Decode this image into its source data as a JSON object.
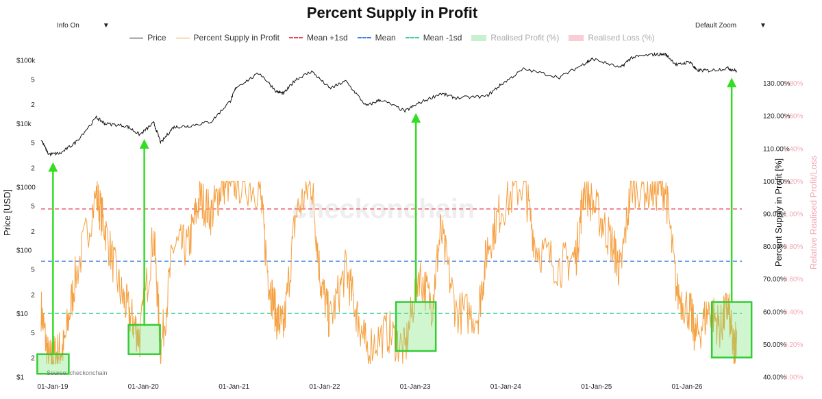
{
  "header": {
    "title": "Percent Supply in Profit",
    "info_on": "Info On",
    "default_zoom": "Default Zoom",
    "caret": "▼"
  },
  "legend": [
    {
      "label": "Price",
      "color": "#111111",
      "style": "line"
    },
    {
      "label": "Percent Supply in Profit",
      "color": "#f5a041",
      "style": "line"
    },
    {
      "label": "Mean +1sd",
      "color": "#e8485c",
      "style": "dash"
    },
    {
      "label": "Mean",
      "color": "#3f7fe0",
      "style": "dash"
    },
    {
      "label": "Mean -1sd",
      "color": "#3dcf9a",
      "style": "dash"
    },
    {
      "label": "Realised Profit (%)",
      "color": "#c8f0cf",
      "style": "box"
    },
    {
      "label": "Realised Loss (%)",
      "color": "#f8cdd5",
      "style": "box"
    }
  ],
  "watermark": "checkonchain",
  "source": "Source: checkonchain",
  "chart_data": {
    "type": "line",
    "x_ticks": [
      "01-Jan-19",
      "01-Jan-20",
      "01-Jan-21",
      "01-Jan-22",
      "01-Jan-23",
      "01-Jan-24",
      "01-Jan-25",
      "01-Jan-26"
    ],
    "x_range": [
      "2018-11-15",
      "2026-08-10"
    ],
    "y_left": {
      "label": "Price [USD]",
      "scale": "log",
      "range": [
        1,
        100000
      ],
      "ticks": [
        {
          "v": 1,
          "t": "$1"
        },
        {
          "v": 2,
          "t": "2"
        },
        {
          "v": 5,
          "t": "5"
        },
        {
          "v": 10,
          "t": "$10"
        },
        {
          "v": 20,
          "t": "2"
        },
        {
          "v": 50,
          "t": "5"
        },
        {
          "v": 100,
          "t": "$100"
        },
        {
          "v": 200,
          "t": "2"
        },
        {
          "v": 500,
          "t": "5"
        },
        {
          "v": 1000,
          "t": "$1000"
        },
        {
          "v": 2000,
          "t": "2"
        },
        {
          "v": 5000,
          "t": "5"
        },
        {
          "v": 10000,
          "t": "$10k"
        },
        {
          "v": 20000,
          "t": "2"
        },
        {
          "v": 50000,
          "t": "5"
        },
        {
          "v": 100000,
          "t": "$100k"
        }
      ]
    },
    "y_right": {
      "label": "Percent Supply in Profit [%]",
      "range": [
        40,
        140
      ],
      "ticks": [
        "40.00%",
        "50.00%",
        "60.00%",
        "70.00%",
        "80.00%",
        "90.00%",
        "100.00%",
        "110.00%",
        "120.00%",
        "130.00%"
      ]
    },
    "y_right2": {
      "label": "Relative Realised Profit/Loss",
      "range": [
        0,
        2
      ],
      "ticks": [
        "0.00%",
        "0.20%",
        "0.40%",
        "0.60%",
        "0.80%",
        "1.00%",
        "1.20%",
        "1.40%",
        "1.60%",
        "1.80%"
      ]
    },
    "reference_lines": {
      "mean_plus_1sd": 91.5,
      "mean": 75.5,
      "mean_minus_1sd": 59.5
    },
    "series": [
      {
        "name": "Price",
        "points": [
          [
            "2018-11-15",
            5600
          ],
          [
            "2018-12-15",
            3300
          ],
          [
            "2019-02-01",
            3400
          ],
          [
            "2019-04-01",
            5000
          ],
          [
            "2019-06-26",
            12500
          ],
          [
            "2019-08-01",
            10000
          ],
          [
            "2019-10-26",
            9200
          ],
          [
            "2019-12-18",
            6700
          ],
          [
            "2020-02-12",
            10300
          ],
          [
            "2020-03-12",
            5000
          ],
          [
            "2020-05-01",
            8800
          ],
          [
            "2020-07-01",
            9200
          ],
          [
            "2020-10-01",
            10800
          ],
          [
            "2020-12-17",
            23000
          ],
          [
            "2021-01-10",
            38000
          ],
          [
            "2021-04-14",
            63000
          ],
          [
            "2021-06-22",
            32000
          ],
          [
            "2021-07-20",
            30000
          ],
          [
            "2021-09-07",
            50000
          ],
          [
            "2021-11-10",
            67000
          ],
          [
            "2022-01-22",
            36000
          ],
          [
            "2022-03-28",
            47000
          ],
          [
            "2022-06-18",
            19000
          ],
          [
            "2022-08-15",
            24000
          ],
          [
            "2022-11-21",
            15800
          ],
          [
            "2023-01-15",
            21000
          ],
          [
            "2023-04-14",
            30000
          ],
          [
            "2023-06-15",
            25500
          ],
          [
            "2023-10-15",
            27000
          ],
          [
            "2023-12-15",
            42000
          ],
          [
            "2024-03-14",
            73000
          ],
          [
            "2024-08-05",
            54000
          ],
          [
            "2024-11-12",
            88000
          ],
          [
            "2024-12-17",
            106000
          ],
          [
            "2025-04-07",
            76000
          ],
          [
            "2025-05-22",
            111000
          ],
          [
            "2025-08-14",
            123000
          ],
          [
            "2025-10-06",
            125000
          ],
          [
            "2025-11-21",
            84000
          ],
          [
            "2026-01-14",
            96000
          ],
          [
            "2026-02-06",
            70000
          ],
          [
            "2026-04-01",
            69000
          ],
          [
            "2026-06-15",
            75000
          ],
          [
            "2026-07-20",
            68000
          ]
        ]
      },
      {
        "name": "Percent Supply in Profit",
        "points": [
          [
            "2018-11-15",
            61
          ],
          [
            "2018-12-15",
            45
          ],
          [
            "2019-01-15",
            47
          ],
          [
            "2019-02-15",
            49
          ],
          [
            "2019-04-01",
            70
          ],
          [
            "2019-06-26",
            96
          ],
          [
            "2019-08-01",
            85
          ],
          [
            "2019-10-01",
            66
          ],
          [
            "2019-11-15",
            58
          ],
          [
            "2019-12-18",
            52
          ],
          [
            "2020-02-12",
            84
          ],
          [
            "2020-03-12",
            48
          ],
          [
            "2020-05-01",
            80
          ],
          [
            "2020-07-01",
            80
          ],
          [
            "2020-08-15",
            95
          ],
          [
            "2020-10-01",
            90
          ],
          [
            "2020-11-15",
            99
          ],
          [
            "2021-01-10",
            99.8
          ],
          [
            "2021-04-14",
            98
          ],
          [
            "2021-05-20",
            70
          ],
          [
            "2021-06-22",
            58
          ],
          [
            "2021-07-20",
            55
          ],
          [
            "2021-09-07",
            90
          ],
          [
            "2021-11-10",
            99.5
          ],
          [
            "2021-12-15",
            70
          ],
          [
            "2022-01-22",
            57
          ],
          [
            "2022-03-28",
            73
          ],
          [
            "2022-05-12",
            59
          ],
          [
            "2022-06-18",
            49
          ],
          [
            "2022-09-15",
            54
          ],
          [
            "2022-11-21",
            48
          ],
          [
            "2023-01-15",
            72
          ],
          [
            "2023-03-10",
            62
          ],
          [
            "2023-04-14",
            85
          ],
          [
            "2023-06-15",
            60
          ],
          [
            "2023-09-11",
            59
          ],
          [
            "2023-10-20",
            80
          ],
          [
            "2023-12-15",
            92
          ],
          [
            "2024-03-14",
            99.7
          ],
          [
            "2024-05-01",
            80
          ],
          [
            "2024-08-05",
            74
          ],
          [
            "2024-10-10",
            77
          ],
          [
            "2024-11-12",
            98
          ],
          [
            "2025-01-15",
            89
          ],
          [
            "2025-03-10",
            80
          ],
          [
            "2025-04-07",
            72
          ],
          [
            "2025-05-22",
            99
          ],
          [
            "2025-08-14",
            97
          ],
          [
            "2025-10-06",
            98
          ],
          [
            "2025-11-21",
            66
          ],
          [
            "2026-01-14",
            60
          ],
          [
            "2026-02-06",
            52
          ],
          [
            "2026-04-01",
            61
          ],
          [
            "2026-05-15",
            55
          ],
          [
            "2026-06-15",
            62
          ],
          [
            "2026-07-08",
            48
          ],
          [
            "2026-07-20",
            54
          ]
        ]
      }
    ],
    "annotations": [
      {
        "date": "2019-01-02",
        "box": [
          41,
          47
        ]
      },
      {
        "date": "2020-01-05",
        "box": [
          47,
          56
        ]
      },
      {
        "date": "2023-01-04",
        "box": [
          48,
          63
        ]
      },
      {
        "date": "2026-06-30",
        "box": [
          46,
          63
        ]
      }
    ]
  }
}
